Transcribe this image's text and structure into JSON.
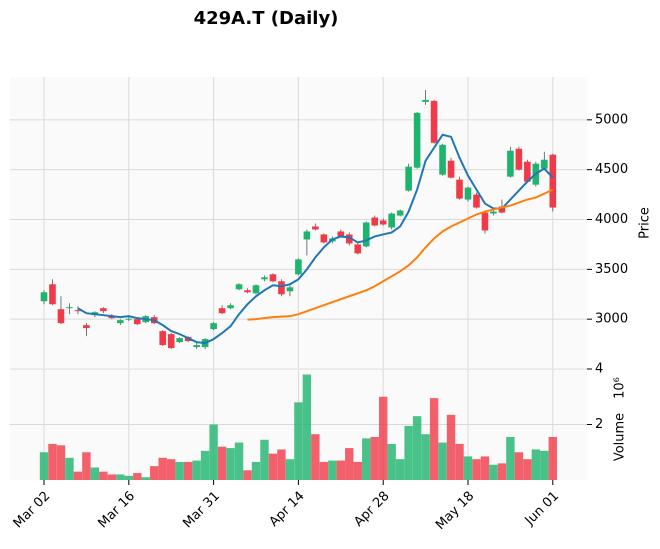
{
  "chart_data": {
    "type": "candlestick",
    "title": "429A.T (Daily)",
    "ylabel": "Price",
    "volume_label": "Volume",
    "volume_scale": "10⁶",
    "categories": [
      "Mar 02",
      null,
      null,
      null,
      null,
      null,
      null,
      null,
      null,
      null,
      "Mar 16",
      null,
      null,
      null,
      null,
      null,
      null,
      null,
      null,
      null,
      "Mar 31",
      null,
      null,
      null,
      null,
      null,
      null,
      null,
      null,
      null,
      "Apr 14",
      null,
      null,
      null,
      null,
      null,
      null,
      null,
      null,
      null,
      "Apr 28",
      null,
      null,
      null,
      null,
      null,
      null,
      null,
      null,
      null,
      "May 18",
      null,
      null,
      null,
      null,
      null,
      null,
      null,
      null,
      null,
      "Jun 01"
    ],
    "open": [
      3180,
      3350,
      3100,
      3110,
      3090,
      2940,
      3040,
      3110,
      3030,
      2960,
      2995,
      3000,
      2970,
      3020,
      2880,
      2850,
      2770,
      2820,
      2720,
      2720,
      2900,
      3110,
      3110,
      3300,
      3290,
      3260,
      3400,
      3450,
      3380,
      3280,
      3450,
      3800,
      3930,
      3850,
      3780,
      3880,
      3850,
      3750,
      3730,
      4020,
      3990,
      3920,
      4040,
      4290,
      4520,
      5180,
      5190,
      4450,
      4590,
      4400,
      4200,
      4250,
      4070,
      4060,
      4130,
      4430,
      4710,
      4580,
      4350,
      4510,
      4650
    ],
    "high": [
      3290,
      3400,
      3230,
      3160,
      3130,
      2960,
      3080,
      3120,
      3050,
      3000,
      3020,
      3020,
      3040,
      3040,
      2890,
      2860,
      2820,
      2830,
      2760,
      2810,
      2970,
      3140,
      3160,
      3360,
      3310,
      3350,
      3440,
      3460,
      3400,
      3340,
      3610,
      3900,
      3960,
      3860,
      3830,
      3900,
      3870,
      3760,
      3980,
      4040,
      4010,
      4070,
      4100,
      4560,
      5080,
      5300,
      5200,
      4760,
      4620,
      4430,
      4330,
      4270,
      4090,
      4120,
      4200,
      4730,
      4730,
      4600,
      4580,
      4680,
      4660
    ],
    "low": [
      3150,
      3140,
      2950,
      3050,
      3050,
      2830,
      3020,
      3060,
      3000,
      2940,
      2980,
      2940,
      2960,
      2950,
      2730,
      2700,
      2760,
      2770,
      2700,
      2700,
      2890,
      3050,
      3100,
      3290,
      3260,
      3250,
      3380,
      3370,
      3230,
      3230,
      3440,
      3640,
      3890,
      3760,
      3760,
      3820,
      3740,
      3650,
      3720,
      3930,
      3940,
      3900,
      4030,
      4280,
      4510,
      5150,
      4760,
      4440,
      4410,
      4200,
      4180,
      4110,
      3860,
      4040,
      4060,
      4420,
      4490,
      4370,
      4330,
      4500,
      4080
    ],
    "close": [
      3270,
      3150,
      2960,
      3120,
      3080,
      2910,
      3070,
      3080,
      3010,
      2990,
      3005,
      2950,
      3030,
      2960,
      2740,
      2710,
      2810,
      2780,
      2740,
      2800,
      2960,
      3060,
      3140,
      3350,
      3270,
      3340,
      3420,
      3380,
      3250,
      3320,
      3600,
      3880,
      3900,
      3770,
      3810,
      3830,
      3760,
      3660,
      3970,
      3940,
      3950,
      4060,
      4090,
      4530,
      5070,
      5200,
      4770,
      4750,
      4420,
      4210,
      4320,
      4120,
      3890,
      4080,
      4070,
      4690,
      4500,
      4380,
      4560,
      4600,
      4120
    ],
    "volume": [
      1.0,
      1.3,
      1.25,
      0.8,
      0.3,
      1.0,
      0.45,
      0.3,
      0.2,
      0.2,
      0.15,
      0.25,
      0.1,
      0.5,
      0.8,
      0.75,
      0.65,
      0.65,
      0.7,
      1.05,
      2.0,
      1.2,
      1.15,
      1.35,
      0.35,
      0.65,
      1.45,
      0.95,
      1.1,
      0.75,
      2.8,
      3.8,
      1.65,
      0.65,
      0.7,
      0.7,
      1.15,
      0.65,
      1.5,
      1.55,
      3.0,
      1.3,
      0.75,
      1.95,
      2.3,
      1.65,
      2.95,
      1.35,
      2.35,
      1.3,
      0.85,
      0.75,
      0.85,
      0.55,
      0.6,
      1.55,
      1.0,
      0.75,
      1.1,
      1.05,
      1.55
    ],
    "up_color": "#1db46d",
    "down_color": "#f03a47",
    "series": [
      {
        "color": "#1f77b4",
        "values": [
          null,
          null,
          null,
          null,
          3110,
          3060,
          3050,
          3040,
          3030,
          3020,
          3030,
          3010,
          3000,
          2990,
          2940,
          2880,
          2850,
          2810,
          2770,
          2760,
          2800,
          2860,
          2930,
          3050,
          3150,
          3230,
          3290,
          3340,
          3330,
          3350,
          3400,
          3500,
          3620,
          3720,
          3800,
          3830,
          3820,
          3770,
          3790,
          3830,
          3850,
          3870,
          3930,
          4080,
          4300,
          4590,
          4720,
          4850,
          4830,
          4620,
          4440,
          4300,
          4160,
          4110,
          4110,
          4200,
          4290,
          4380,
          4460,
          4510,
          4420
        ]
      },
      {
        "color": "#ff7f0e",
        "values": [
          null,
          null,
          null,
          null,
          null,
          null,
          null,
          null,
          null,
          null,
          null,
          null,
          null,
          null,
          null,
          null,
          null,
          null,
          null,
          null,
          null,
          null,
          null,
          null,
          2995,
          3000,
          3010,
          3020,
          3025,
          3030,
          3050,
          3080,
          3110,
          3140,
          3170,
          3200,
          3230,
          3260,
          3290,
          3330,
          3380,
          3430,
          3480,
          3540,
          3620,
          3720,
          3810,
          3880,
          3930,
          3970,
          4010,
          4050,
          4080,
          4100,
          4120,
          4140,
          4170,
          4200,
          4220,
          4260,
          4300
        ]
      }
    ],
    "ylim": [
      2510,
      5430
    ],
    "yticks": [
      3000,
      3500,
      4000,
      4500,
      5000
    ],
    "volume_ylim": [
      0,
      4
    ],
    "volume_yticks": [
      2,
      4
    ],
    "grid": true
  }
}
